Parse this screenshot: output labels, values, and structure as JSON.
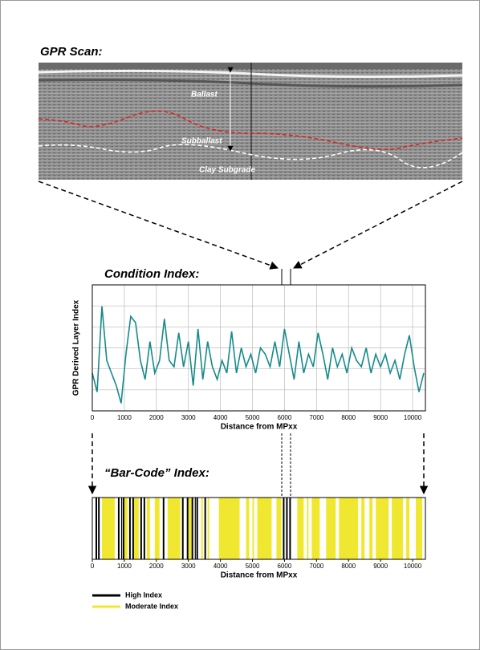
{
  "gpr_scan": {
    "title": "GPR Scan:",
    "labels": [
      "Ballast",
      "Subballast",
      "Clay Subgrade"
    ]
  },
  "chart_data": [
    {
      "type": "line",
      "title": "Condition Index:",
      "y_label": "GPR Derived Layer Index",
      "x_label": "Distance from MPxx",
      "color": "#168a8a",
      "grid": true,
      "x": [
        0,
        150,
        300,
        450,
        600,
        750,
        900,
        1050,
        1200,
        1350,
        1500,
        1650,
        1800,
        1950,
        2100,
        2250,
        2400,
        2550,
        2700,
        2850,
        3000,
        3150,
        3300,
        3450,
        3600,
        3750,
        3900,
        4050,
        4200,
        4350,
        4500,
        4650,
        4800,
        4950,
        5100,
        5250,
        5400,
        5550,
        5700,
        5850,
        6000,
        6150,
        6300,
        6450,
        6600,
        6750,
        6900,
        7050,
        7200,
        7350,
        7500,
        7650,
        7800,
        7950,
        8100,
        8250,
        8400,
        8550,
        8700,
        8850,
        9000,
        9150,
        9300,
        9450,
        9600,
        9750,
        9900,
        10050,
        10200,
        10350
      ],
      "values": [
        3,
        1.5,
        8.3,
        4,
        3,
        2,
        0.6,
        4.5,
        7.5,
        7,
        4,
        2.5,
        5.5,
        3,
        4,
        7.3,
        4,
        3.5,
        6.2,
        3.5,
        5.5,
        2,
        6.5,
        2.5,
        5.5,
        3.5,
        2.5,
        4,
        3,
        6.3,
        3,
        5,
        3.5,
        4.5,
        3,
        5,
        4.5,
        3.5,
        5.5,
        3.5,
        6.5,
        4.5,
        2.5,
        5.5,
        3,
        4.5,
        3.5,
        6.2,
        4.5,
        2.5,
        5,
        3.5,
        4.5,
        3,
        5,
        4,
        3.5,
        5,
        3,
        4.5,
        3.5,
        4.5,
        3,
        4,
        2.5,
        4.5,
        6,
        3.5,
        1.5,
        3
      ],
      "xlim": [
        0,
        10400
      ],
      "ylim": [
        0,
        10
      ],
      "xticks": [
        0,
        1000,
        2000,
        3000,
        4000,
        5000,
        6000,
        7000,
        8000,
        9000,
        10000
      ]
    },
    {
      "type": "barcode",
      "title": "“Bar-Code” Index:",
      "x_label": "Distance from MPxx",
      "xlim": [
        0,
        10400
      ],
      "xticks": [
        0,
        1000,
        2000,
        3000,
        4000,
        5000,
        6000,
        7000,
        8000,
        9000,
        10000
      ],
      "series": [
        {
          "name": "Moderate Index",
          "color": "#f0e830",
          "starts": [
            300,
            1000,
            1300,
            1700,
            1950,
            2350,
            3000,
            3400,
            3600,
            3950,
            4800,
            5000,
            5150,
            5750,
            6400,
            6700,
            6850,
            7300,
            7700,
            8400,
            8650,
            8850,
            9350,
            9800,
            10100
          ],
          "ends": [
            700,
            1100,
            1450,
            1800,
            2100,
            2750,
            3100,
            3450,
            3650,
            4600,
            4900,
            5050,
            5600,
            5900,
            6600,
            6750,
            7100,
            7600,
            8300,
            8500,
            8750,
            9250,
            9700,
            9900,
            10300
          ]
        },
        {
          "name": "High Index",
          "color": "#000000",
          "starts": [
            100,
            180,
            800,
            900,
            950,
            1150,
            1250,
            1500,
            1600,
            2200,
            2800,
            2950,
            3100,
            3200,
            3250,
            3500,
            5950,
            6050,
            6150
          ],
          "ends": [
            150,
            230,
            850,
            930,
            1000,
            1200,
            1300,
            1550,
            1650,
            2250,
            2850,
            3000,
            3150,
            3230,
            3300,
            3550,
            6000,
            6100,
            6200
          ]
        }
      ]
    }
  ]
}
